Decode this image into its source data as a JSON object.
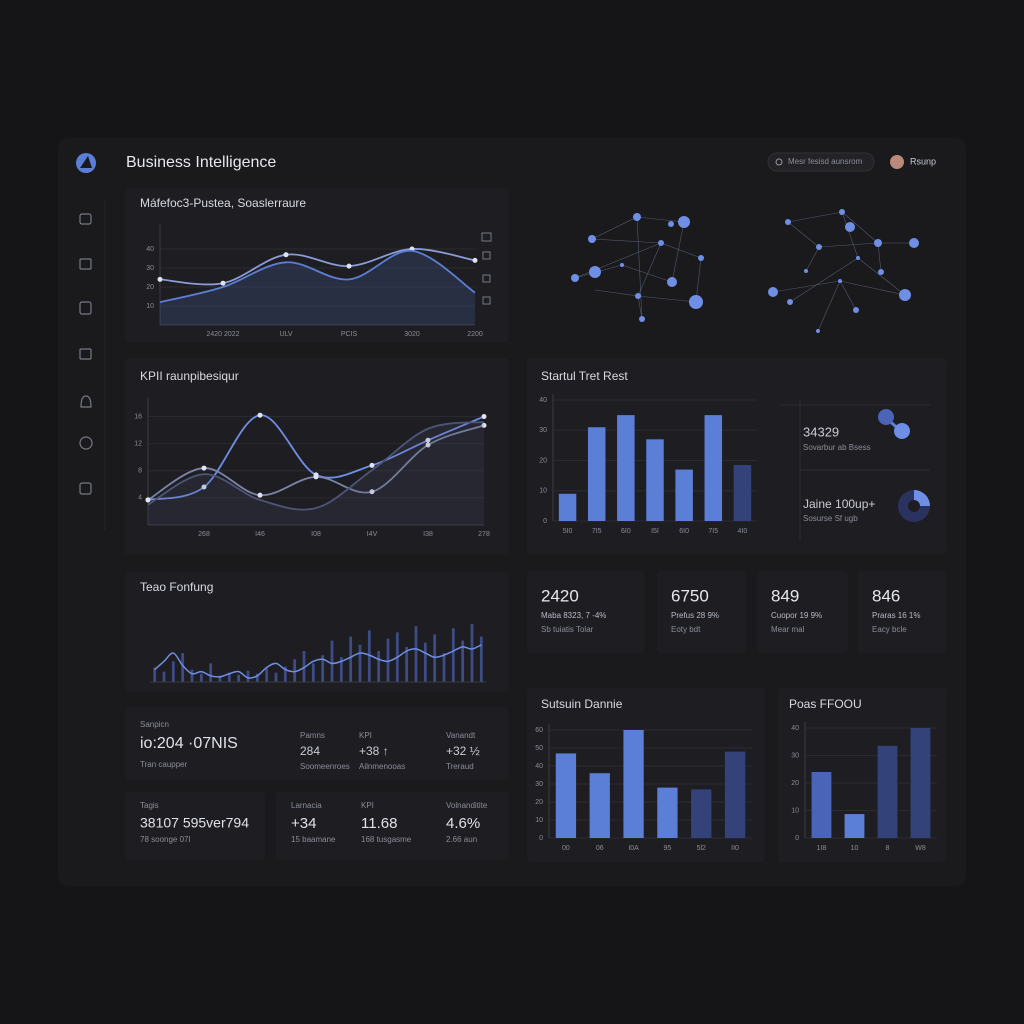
{
  "header": {
    "title": "Business Intelligence",
    "search": "Mesr fesisd aunsrom",
    "user": "Rsunp"
  },
  "side_stats": [
    {
      "value": "34329",
      "label": "Sovarbur ab Bsess"
    },
    {
      "value": "Jaine 100up+",
      "label": "Sosurse Sf ugb"
    }
  ],
  "kpi_cards": [
    {
      "value": "2420",
      "label": "Maba 8323, 7 -4%",
      "sub": "Sb tuiatis Tolar"
    },
    {
      "value": "6750",
      "label": "Prefus 28 9%",
      "sub": "Eoty bdt"
    },
    {
      "value": "849",
      "label": "Cuopor 19 9%",
      "sub": "Mear mal"
    },
    {
      "value": "846",
      "label": "Praras 16 1%",
      "sub": "Eacy bcle"
    }
  ],
  "summary": {
    "label": "Sanpicn",
    "value": "io:204 ·07NIS",
    "sub": "Tran caupper",
    "columns": [
      {
        "label": "Pamns",
        "value": "284",
        "sub": "Soomeenroes"
      },
      {
        "label": "KPI",
        "value": "+38 ↑",
        "sub": "Ailnmenooas"
      },
      {
        "label": "Vanandt",
        "value": "+32 ½",
        "sub": "Treraud"
      }
    ]
  },
  "tags": {
    "label": "Tagis",
    "value": "38107 595ver794",
    "sub": "78 soonge 07I"
  },
  "metrics": [
    {
      "label": "Larnacia",
      "value": "+34",
      "sub": "15 baamane"
    },
    {
      "label": "KPI",
      "value": "11.68",
      "sub": "168 tusgasme"
    },
    {
      "label": "Volnanditite",
      "value": "4.6%",
      "sub": "2.66 aun"
    }
  ],
  "chart_data": [
    {
      "type": "line",
      "title": "Máfefoc3-Pustea, Soaslerraure",
      "categories": [
        null,
        "2420 2022",
        "ULV",
        "PCIS",
        "3020",
        "2200"
      ],
      "ylim": [
        0,
        50
      ],
      "yticks": [
        10,
        20,
        30,
        40
      ],
      "series": [
        {
          "color": "#8a9bd8",
          "values": [
            24,
            22,
            37,
            31,
            40,
            34
          ],
          "markers": true
        },
        {
          "color": "#5b7fd6",
          "values": [
            12,
            20,
            33,
            24,
            39,
            17
          ],
          "area": true
        }
      ]
    },
    {
      "type": "line",
      "title": "KPII raunpibesiqur",
      "categories": [
        null,
        "268",
        "I46",
        "I08",
        "I4V",
        "I38",
        "278"
      ],
      "ylim": [
        0,
        18
      ],
      "yticks": [
        4,
        8,
        12,
        16
      ],
      "series": [
        {
          "color": "#6f8fe6",
          "values": [
            3.7,
            5.6,
            16.2,
            7.4,
            8.8,
            12.5,
            16
          ],
          "markers": true
        },
        {
          "color": "#7b84a8",
          "values": [
            3.7,
            8.4,
            4.4,
            7.1,
            4.9,
            11.8,
            14.7
          ],
          "markers": true
        },
        {
          "color": "#4c5575",
          "values": [
            3,
            7.5,
            3.7,
            2.5,
            8.1,
            14.2,
            15.2
          ],
          "area": true
        }
      ]
    },
    {
      "type": "bar",
      "title": "Startul Tret Rest",
      "categories": [
        "5I0",
        "7I5",
        "6I0",
        "I5I",
        "6I0",
        "7I5",
        "4I0"
      ],
      "values": [
        9,
        31,
        35,
        27,
        17,
        35,
        18.5
      ],
      "colors": [
        "#5b7fd6",
        "#5b7fd6",
        "#5b7fd6",
        "#5b7fd6",
        "#5b7fd6",
        "#5b7fd6",
        "#34427a"
      ],
      "ylim": [
        0,
        40
      ],
      "yticks": [
        0,
        10,
        20,
        30,
        40
      ]
    },
    {
      "type": "combo",
      "title": "Teao Fonfung",
      "ylim": [
        0,
        60
      ],
      "series": [
        {
          "type": "bar",
          "color": "#3d4c85",
          "values": [
            14,
            10,
            20,
            28,
            12,
            8,
            18,
            6,
            9,
            7,
            11,
            8,
            13,
            9,
            15,
            22,
            30,
            18,
            26,
            40,
            24,
            44,
            36,
            50,
            30,
            42,
            48,
            34,
            54,
            38,
            46,
            28,
            52,
            40,
            56,
            44
          ]
        },
        {
          "type": "line",
          "color": "#6f8fe6",
          "values": [
            12,
            20,
            28,
            16,
            8,
            10,
            6,
            5,
            8,
            10,
            4,
            6,
            14,
            18,
            12,
            10,
            14,
            20,
            22,
            18,
            20,
            24,
            28,
            26,
            22,
            20,
            24,
            30,
            32,
            28,
            24,
            26,
            30,
            34,
            32,
            36
          ]
        }
      ]
    },
    {
      "type": "bar",
      "title": "Sutsuin Dannie",
      "categories": [
        "00",
        "06",
        "I0A",
        "95",
        "5l2",
        "II0"
      ],
      "values": [
        47,
        36,
        60,
        28,
        27,
        48
      ],
      "colors": [
        "#5b7fd6",
        "#5b7fd6",
        "#5b7fd6",
        "#5b7fd6",
        "#34427a",
        "#34427a"
      ],
      "ylim": [
        0,
        60
      ],
      "yticks": [
        0,
        10,
        20,
        30,
        40,
        50,
        60
      ]
    },
    {
      "type": "bar",
      "title": "Poas FFOOU",
      "categories": [
        "1I8",
        "10",
        "8",
        "W8"
      ],
      "values": [
        24,
        8.7,
        33.5,
        40
      ],
      "colors": [
        "#4a64b8",
        "#5b7fd6",
        "#34427a",
        "#34427a"
      ],
      "ylim": [
        0,
        40
      ],
      "yticks": [
        0,
        10,
        20,
        30,
        40
      ]
    }
  ]
}
